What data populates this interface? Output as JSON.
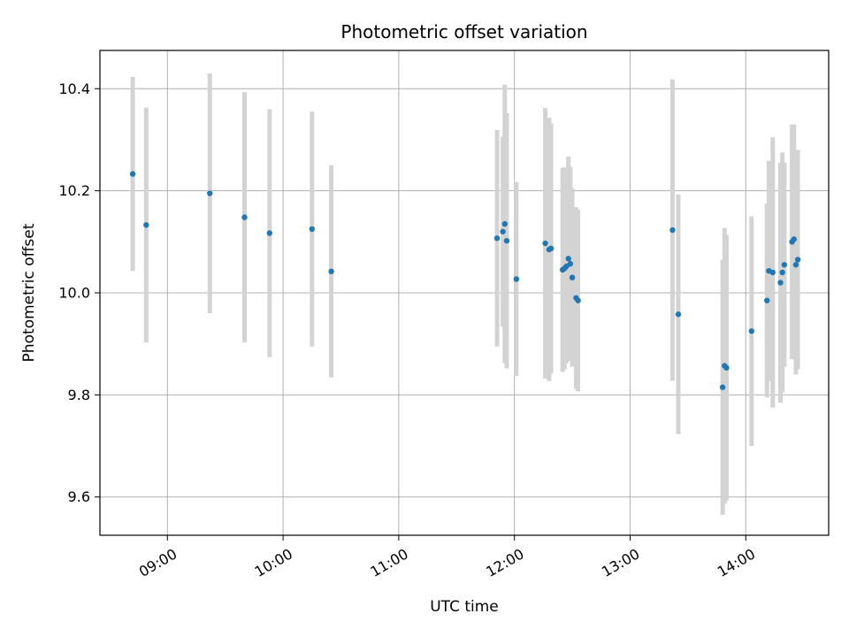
{
  "chart_data": {
    "type": "scatter",
    "title": "Photometric offset variation",
    "xlabel": "UTC time",
    "ylabel": "Photometric offset",
    "x_axis_kind": "time",
    "xlim": [
      "08:25",
      "14:43"
    ],
    "ylim": [
      9.525,
      10.475
    ],
    "x_ticks": [
      "09:00",
      "10:00",
      "11:00",
      "12:00",
      "13:00",
      "14:00"
    ],
    "y_ticks": [
      9.6,
      9.8,
      10.0,
      10.2,
      10.4
    ],
    "y_tick_labels": [
      "9.6",
      "9.8",
      "10.0",
      "10.2",
      "10.4"
    ],
    "grid": true,
    "point_color": "#1f77b4",
    "errorbar_color": "#d3d3d3",
    "points": [
      {
        "time": "08:42",
        "y": 10.233,
        "err": 0.19
      },
      {
        "time": "08:49",
        "y": 10.133,
        "err": 0.23
      },
      {
        "time": "09:22",
        "y": 10.195,
        "err": 0.235
      },
      {
        "time": "09:40",
        "y": 10.148,
        "err": 0.245
      },
      {
        "time": "09:53",
        "y": 10.117,
        "err": 0.243
      },
      {
        "time": "10:15",
        "y": 10.125,
        "err": 0.23
      },
      {
        "time": "10:25",
        "y": 10.042,
        "err": 0.208
      },
      {
        "time": "11:51",
        "y": 10.107,
        "err": 0.212
      },
      {
        "time": "11:54",
        "y": 10.12,
        "err": 0.186
      },
      {
        "time": "11:55",
        "y": 10.135,
        "err": 0.273
      },
      {
        "time": "11:56",
        "y": 10.102,
        "err": 0.25
      },
      {
        "time": "12:01",
        "y": 10.027,
        "err": 0.19
      },
      {
        "time": "12:16",
        "y": 10.097,
        "err": 0.265
      },
      {
        "time": "12:18",
        "y": 10.085,
        "err": 0.258
      },
      {
        "time": "12:19",
        "y": 10.087,
        "err": 0.245
      },
      {
        "time": "12:25",
        "y": 10.045,
        "err": 0.2
      },
      {
        "time": "12:26",
        "y": 10.048,
        "err": 0.198
      },
      {
        "time": "12:27",
        "y": 10.052,
        "err": 0.19
      },
      {
        "time": "12:28",
        "y": 10.067,
        "err": 0.2
      },
      {
        "time": "12:29",
        "y": 10.057,
        "err": 0.19
      },
      {
        "time": "12:30",
        "y": 10.03,
        "err": 0.175
      },
      {
        "time": "12:32",
        "y": 9.99,
        "err": 0.178
      },
      {
        "time": "12:33",
        "y": 9.985,
        "err": 0.178
      },
      {
        "time": "13:22",
        "y": 10.123,
        "err": 0.295
      },
      {
        "time": "13:25",
        "y": 9.958,
        "err": 0.235
      },
      {
        "time": "13:48",
        "y": 9.815,
        "err": 0.25
      },
      {
        "time": "13:49",
        "y": 9.857,
        "err": 0.27
      },
      {
        "time": "13:50",
        "y": 9.853,
        "err": 0.26
      },
      {
        "time": "14:03",
        "y": 9.925,
        "err": 0.225
      },
      {
        "time": "14:11",
        "y": 9.985,
        "err": 0.19
      },
      {
        "time": "14:12",
        "y": 10.043,
        "err": 0.216
      },
      {
        "time": "14:14",
        "y": 10.04,
        "err": 0.265
      },
      {
        "time": "14:18",
        "y": 10.02,
        "err": 0.235
      },
      {
        "time": "14:19",
        "y": 10.04,
        "err": 0.235
      },
      {
        "time": "14:20",
        "y": 10.055,
        "err": 0.2
      },
      {
        "time": "14:24",
        "y": 10.1,
        "err": 0.23
      },
      {
        "time": "14:25",
        "y": 10.105,
        "err": 0.225
      },
      {
        "time": "14:26",
        "y": 10.055,
        "err": 0.215
      },
      {
        "time": "14:27",
        "y": 10.065,
        "err": 0.215
      }
    ]
  }
}
